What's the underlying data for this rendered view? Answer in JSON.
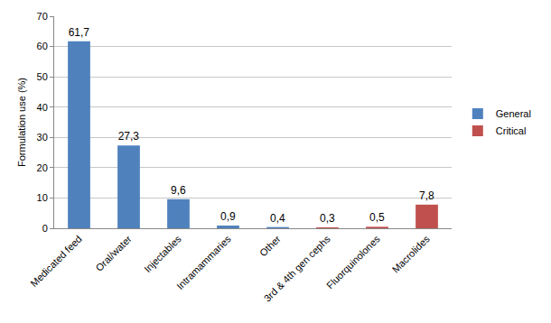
{
  "chart_data": {
    "type": "bar",
    "y_label": "Formulation use (%)",
    "categories": [
      "Medicated feed",
      "Oral/water",
      "Injectables",
      "Intramammaries",
      "Other",
      "3rd & 4th gen cephs",
      "Fluorquinolones",
      "Macrolides"
    ],
    "series": [
      {
        "name": "General",
        "color": "#4f81bd",
        "values": [
          61.7,
          27.3,
          9.6,
          0.9,
          0.4,
          null,
          null,
          null
        ],
        "value_labels": [
          "61,7",
          "27,3",
          "9,6",
          "0,9",
          "0,4",
          null,
          null,
          null
        ]
      },
      {
        "name": "Critical",
        "color": "#c0504d",
        "values": [
          null,
          null,
          null,
          null,
          null,
          0.3,
          0.5,
          7.8
        ],
        "value_labels": [
          null,
          null,
          null,
          null,
          null,
          "0,3",
          "0,5",
          "7,8"
        ]
      }
    ],
    "ylim": [
      0,
      70
    ],
    "yticks": [
      0,
      10,
      20,
      30,
      40,
      50,
      60,
      70
    ],
    "grid": true,
    "legend": "right",
    "data_labels": true
  }
}
